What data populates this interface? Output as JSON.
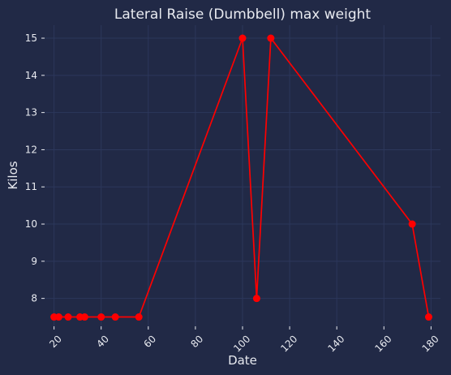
{
  "chart_data": {
    "type": "line",
    "title": "Lateral Raise (Dumbbell) max weight",
    "xlabel": "Date",
    "ylabel": "Kilos",
    "xlim": [
      16,
      184
    ],
    "ylim": [
      7.25,
      15.35
    ],
    "x_ticks": [
      20,
      40,
      60,
      80,
      100,
      120,
      140,
      160,
      180
    ],
    "y_ticks": [
      8,
      9,
      10,
      11,
      12,
      13,
      14,
      15
    ],
    "grid": true,
    "series": [
      {
        "color": "#ff0000",
        "x": [
          20,
          22,
          26,
          31,
          33,
          40,
          46,
          56,
          100,
          106,
          112,
          172,
          179
        ],
        "y": [
          7.5,
          7.5,
          7.5,
          7.5,
          7.5,
          7.5,
          7.5,
          7.5,
          15,
          8,
          15,
          10,
          7.5
        ]
      }
    ]
  },
  "colors": {
    "background": "#212946",
    "grid": "#2c375b",
    "text": "#e8eaf0",
    "series": "#ff0000"
  }
}
